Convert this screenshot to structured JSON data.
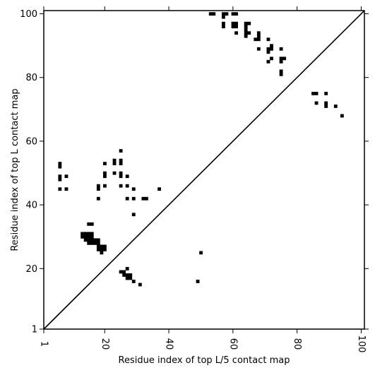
{
  "chart_data": {
    "type": "heatmap",
    "xlabel": "Residue index of top L/5 contact map",
    "ylabel": "Residue index of top L contact map",
    "xlim": [
      1,
      101
    ],
    "ylim": [
      1,
      101
    ],
    "grid": false,
    "diagonal_line": true,
    "xticks": [
      {
        "value": 1,
        "label": "1"
      },
      {
        "value": 20,
        "label": "20"
      },
      {
        "value": 40,
        "label": "40"
      },
      {
        "value": 60,
        "label": "60"
      },
      {
        "value": 80,
        "label": "80"
      },
      {
        "value": 100,
        "label": "100"
      }
    ],
    "yticks": [
      {
        "value": 1,
        "label": "1"
      },
      {
        "value": 20,
        "label": "20"
      },
      {
        "value": 40,
        "label": "40"
      },
      {
        "value": 60,
        "label": "60"
      },
      {
        "value": 80,
        "label": "80"
      },
      {
        "value": 100,
        "label": "100"
      }
    ],
    "cell_color": "#000000",
    "lower_triangle_contacts": [
      [
        6,
        52
      ],
      [
        6,
        53
      ],
      [
        6,
        48
      ],
      [
        6,
        49
      ],
      [
        6,
        45
      ],
      [
        8,
        45
      ],
      [
        8,
        49
      ],
      [
        18,
        45
      ],
      [
        18,
        46
      ],
      [
        18,
        42
      ],
      [
        20,
        49
      ],
      [
        20,
        50
      ],
      [
        20,
        46
      ],
      [
        20,
        53
      ],
      [
        23,
        53
      ],
      [
        23,
        54
      ],
      [
        23,
        50
      ],
      [
        25,
        57
      ],
      [
        25,
        53
      ],
      [
        25,
        54
      ],
      [
        25,
        49
      ],
      [
        25,
        50
      ],
      [
        25,
        46
      ],
      [
        27,
        49
      ],
      [
        27,
        46
      ],
      [
        27,
        42
      ],
      [
        29,
        45
      ],
      [
        29,
        42
      ],
      [
        29,
        37
      ],
      [
        32,
        42
      ],
      [
        33,
        42
      ],
      [
        37,
        45
      ],
      [
        13,
        30
      ],
      [
        13,
        31
      ],
      [
        14,
        29
      ],
      [
        14,
        30
      ],
      [
        14,
        31
      ],
      [
        15,
        28
      ],
      [
        15,
        29
      ],
      [
        15,
        30
      ],
      [
        15,
        31
      ],
      [
        16,
        28
      ],
      [
        16,
        29
      ],
      [
        16,
        30
      ],
      [
        16,
        31
      ],
      [
        15,
        34
      ],
      [
        16,
        34
      ],
      [
        17,
        28
      ],
      [
        17,
        29
      ],
      [
        18,
        26
      ],
      [
        18,
        27
      ],
      [
        18,
        28
      ],
      [
        18,
        29
      ],
      [
        19,
        26
      ],
      [
        19,
        27
      ],
      [
        20,
        26
      ],
      [
        20,
        27
      ],
      [
        19,
        25
      ],
      [
        25,
        19
      ],
      [
        26,
        18
      ],
      [
        26,
        19
      ],
      [
        27,
        17
      ],
      [
        27,
        18
      ],
      [
        27,
        20
      ],
      [
        28,
        17
      ],
      [
        28,
        18
      ],
      [
        29,
        16
      ],
      [
        31,
        15
      ],
      [
        50,
        25
      ],
      [
        49,
        16
      ]
    ],
    "upper_triangle_contacts": [
      [
        53,
        100
      ],
      [
        54,
        100
      ],
      [
        57,
        100
      ],
      [
        58,
        100
      ],
      [
        57,
        99
      ],
      [
        60,
        100
      ],
      [
        61,
        100
      ],
      [
        57,
        96
      ],
      [
        57,
        97
      ],
      [
        60,
        96
      ],
      [
        60,
        97
      ],
      [
        61,
        96
      ],
      [
        61,
        97
      ],
      [
        61,
        94
      ],
      [
        64,
        93
      ],
      [
        64,
        94
      ],
      [
        64,
        95
      ],
      [
        64,
        96
      ],
      [
        64,
        97
      ],
      [
        65,
        94
      ],
      [
        65,
        97
      ],
      [
        67,
        92
      ],
      [
        68,
        92
      ],
      [
        68,
        93
      ],
      [
        68,
        94
      ],
      [
        68,
        89
      ],
      [
        71,
        92
      ],
      [
        71,
        88
      ],
      [
        71,
        89
      ],
      [
        72,
        89
      ],
      [
        72,
        90
      ],
      [
        71,
        85
      ],
      [
        72,
        86
      ],
      [
        75,
        89
      ],
      [
        75,
        85
      ],
      [
        75,
        86
      ],
      [
        76,
        86
      ],
      [
        75,
        81
      ],
      [
        75,
        82
      ],
      [
        85,
        75
      ],
      [
        86,
        75
      ],
      [
        86,
        72
      ],
      [
        89,
        75
      ],
      [
        89,
        71
      ],
      [
        89,
        72
      ],
      [
        92,
        71
      ],
      [
        94,
        68
      ]
    ]
  }
}
